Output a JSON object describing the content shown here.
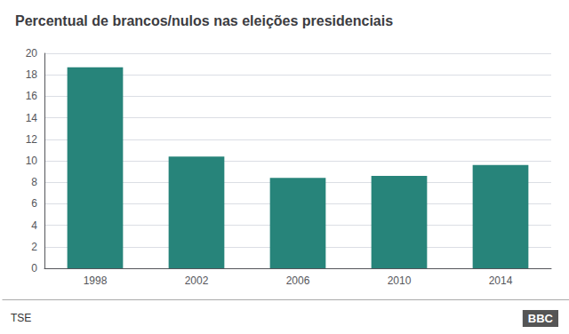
{
  "chart_data": {
    "type": "bar",
    "title": "Percentual de brancos/nulos nas eleições presidenciais",
    "categories": [
      "1998",
      "2002",
      "2006",
      "2010",
      "2014"
    ],
    "values": [
      18.7,
      10.4,
      8.4,
      8.6,
      9.6
    ],
    "color": "#27847a",
    "ylim": [
      0,
      20
    ],
    "yticks": [
      0,
      2,
      4,
      6,
      8,
      10,
      12,
      14,
      16,
      18,
      20
    ],
    "grid": true,
    "annotations": [
      "TSE",
      "BBC"
    ]
  }
}
